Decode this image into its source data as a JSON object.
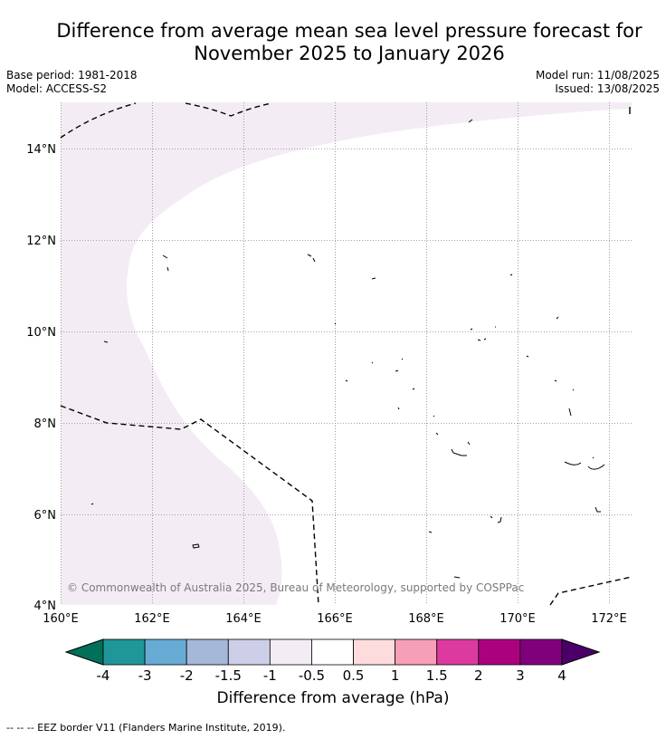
{
  "title_line1": "Difference from average mean sea level pressure forecast for",
  "title_line2": "November 2025 to January 2026",
  "base_period": "Base period: 1981-2018",
  "model": "Model: ACCESS-S2",
  "model_run": "Model run: 11/08/2025",
  "issued": "Issued: 13/08/2025",
  "copyright": "© Commonwealth of Australia 2025, Bureau of Meteorology, supported by COSPPac",
  "lat_labels": [
    "14°N",
    "12°N",
    "10°N",
    "8°N",
    "6°N",
    "4°N"
  ],
  "lon_labels": [
    "160°E",
    "162°E",
    "164°E",
    "166°E",
    "168°E",
    "170°E",
    "172°E"
  ],
  "colorbar": {
    "title": "Difference from average (hPa)",
    "tick_labels": [
      "-4",
      "-3",
      "-2",
      "-1.5",
      "-1",
      "-0.5",
      "0.5",
      "1",
      "1.5",
      "2",
      "3",
      "4"
    ],
    "colors": {
      "under": "#00705a",
      "bins": [
        "#1f9698",
        "#67abd5",
        "#a5b8da",
        "#cdcee7",
        "#f4ecf5",
        "#ffffff",
        "#fedcdd",
        "#f79fb9",
        "#dd3a9f",
        "#ac017f",
        "#80007b"
      ],
      "over": "#4b0069"
    }
  },
  "map_fill_color": "#f4ecf5",
  "footnote": "--  --  -- EEZ border V11 (Flanders Marine Institute, 2019)."
}
